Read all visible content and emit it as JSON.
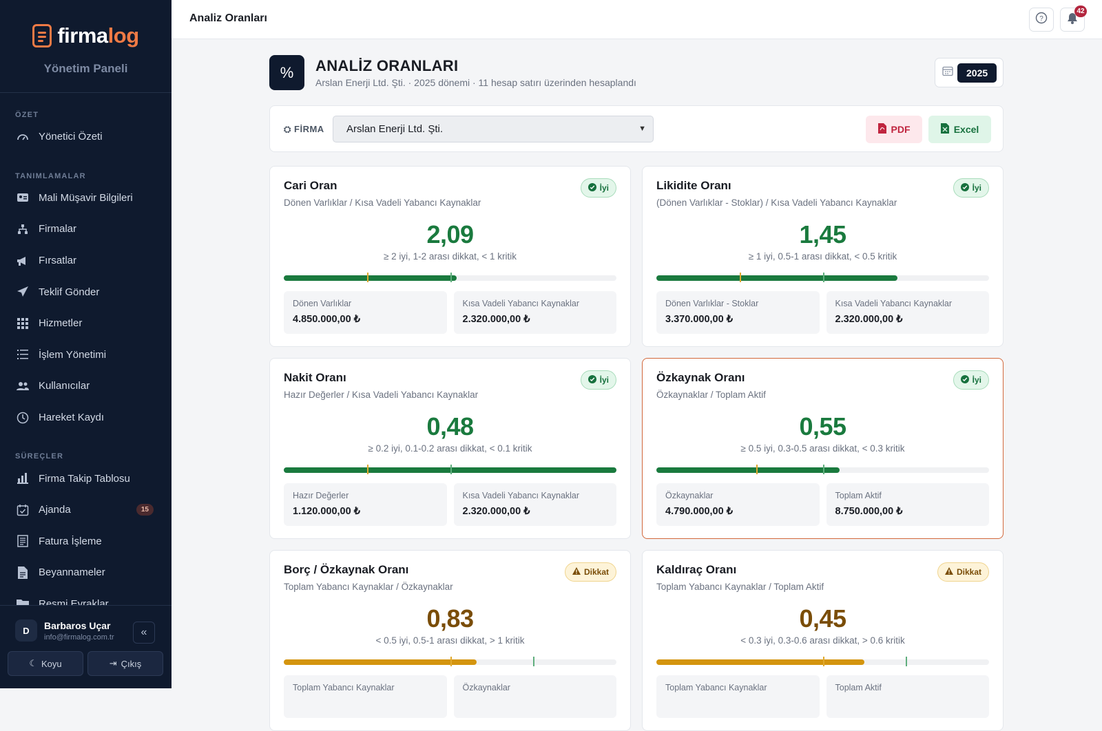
{
  "sidebar": {
    "logo_a": "firma",
    "logo_b": "log",
    "panel_label": "Yönetim Paneli",
    "sections": [
      {
        "title": "ÖZET",
        "items": [
          {
            "label": "Yönetici Özeti",
            "icon": "gauge-icon"
          }
        ]
      },
      {
        "title": "TANIMLAMALAR",
        "items": [
          {
            "label": "Mali Müşavir Bilgileri",
            "icon": "id-card-icon"
          },
          {
            "label": "Firmalar",
            "icon": "sitemap-icon"
          },
          {
            "label": "Fırsatlar",
            "icon": "megaphone-icon"
          },
          {
            "label": "Teklif Gönder",
            "icon": "paper-plane-icon"
          },
          {
            "label": "Hizmetler",
            "icon": "grid-icon"
          },
          {
            "label": "İşlem Yönetimi",
            "icon": "list-icon"
          },
          {
            "label": "Kullanıcılar",
            "icon": "users-icon"
          },
          {
            "label": "Hareket Kaydı",
            "icon": "clock-icon"
          }
        ]
      },
      {
        "title": "SÜREÇLER",
        "items": [
          {
            "label": "Firma Takip Tablosu",
            "icon": "bar-chart-icon"
          },
          {
            "label": "Ajanda",
            "icon": "calendar-check-icon",
            "badge": "15"
          },
          {
            "label": "Fatura İşleme",
            "icon": "invoice-icon"
          },
          {
            "label": "Beyannameler",
            "icon": "file-icon"
          },
          {
            "label": "Resmi Evraklar",
            "icon": "folder-icon"
          }
        ]
      }
    ],
    "user": {
      "initial": "D",
      "name": "Barbaros Uçar",
      "email": "info@firmalog.com.tr"
    },
    "theme_label": "Koyu",
    "logout_label": "Çıkış"
  },
  "topbar": {
    "title": "Analiz Oranları",
    "notification_count": "42"
  },
  "page": {
    "icon": "%",
    "title": "ANALİZ ORANLARI",
    "subtitle": "Arslan Enerji Ltd. Şti. · 2025 dönemi · 11 hesap satırı üzerinden hesaplandı",
    "year": "2025"
  },
  "filter": {
    "label": "FİRMA",
    "selected_company": "Arslan Enerji Ltd. Şti.",
    "pdf_label": "PDF",
    "excel_label": "Excel"
  },
  "colors": {
    "good": "#1a7a3e",
    "warn": "#d4950e",
    "highlight_border": "#d2683b",
    "sidebar_bg": "#0f1a2e"
  },
  "cards": [
    {
      "title": "Cari Oran",
      "formula": "Dönen Varlıklar / Kısa Vadeli Yabancı Kaynaklar",
      "status": "İyi",
      "status_type": "good",
      "value": "2,09",
      "rule": "≥ 2 iyi, 1-2 arası dikkat, < 1 kritik",
      "progress": 0.52,
      "marks": [
        0.25,
        0.5
      ],
      "metrics": [
        {
          "label": "Dönen Varlıklar",
          "value": "4.850.000,00 ₺"
        },
        {
          "label": "Kısa Vadeli Yabancı Kaynaklar",
          "value": "2.320.000,00 ₺"
        }
      ]
    },
    {
      "title": "Likidite Oranı",
      "formula": "(Dönen Varlıklar - Stoklar) / Kısa Vadeli Yabancı Kaynaklar",
      "status": "İyi",
      "status_type": "good",
      "value": "1,45",
      "rule": "≥ 1 iyi, 0.5-1 arası dikkat, < 0.5 kritik",
      "progress": 0.725,
      "marks": [
        0.25,
        0.5
      ],
      "metrics": [
        {
          "label": "Dönen Varlıklar - Stoklar",
          "value": "3.370.000,00 ₺"
        },
        {
          "label": "Kısa Vadeli Yabancı Kaynaklar",
          "value": "2.320.000,00 ₺"
        }
      ]
    },
    {
      "title": "Nakit Oranı",
      "formula": "Hazır Değerler / Kısa Vadeli Yabancı Kaynaklar",
      "status": "İyi",
      "status_type": "good",
      "value": "0,48",
      "rule": "≥ 0.2 iyi, 0.1-0.2 arası dikkat, < 0.1 kritik",
      "progress": 1.0,
      "marks": [
        0.25,
        0.5
      ],
      "metrics": [
        {
          "label": "Hazır Değerler",
          "value": "1.120.000,00 ₺"
        },
        {
          "label": "Kısa Vadeli Yabancı Kaynaklar",
          "value": "2.320.000,00 ₺"
        }
      ]
    },
    {
      "title": "Özkaynak Oranı",
      "formula": "Özkaynaklar / Toplam Aktif",
      "status": "İyi",
      "status_type": "good",
      "value": "0,55",
      "rule": "≥ 0.5 iyi, 0.3-0.5 arası dikkat, < 0.3 kritik",
      "progress": 0.55,
      "marks": [
        0.3,
        0.5
      ],
      "highlight": true,
      "metrics": [
        {
          "label": "Özkaynaklar",
          "value": "4.790.000,00 ₺"
        },
        {
          "label": "Toplam Aktif",
          "value": "8.750.000,00 ₺"
        }
      ]
    },
    {
      "title": "Borç / Özkaynak Oranı",
      "formula": "Toplam Yabancı Kaynaklar / Özkaynaklar",
      "status": "Dikkat",
      "status_type": "warn",
      "value": "0,83",
      "rule": "< 0.5 iyi, 0.5-1 arası dikkat, > 1 kritik",
      "progress": 0.58,
      "marks": [
        0.5,
        0.75
      ],
      "metrics": [
        {
          "label": "Toplam Yabancı Kaynaklar",
          "value": ""
        },
        {
          "label": "Özkaynaklar",
          "value": ""
        }
      ]
    },
    {
      "title": "Kaldıraç Oranı",
      "formula": "Toplam Yabancı Kaynaklar / Toplam Aktif",
      "status": "Dikkat",
      "status_type": "warn",
      "value": "0,45",
      "rule": "< 0.3 iyi, 0.3-0.6 arası dikkat, > 0.6 kritik",
      "progress": 0.625,
      "marks": [
        0.5,
        0.75
      ],
      "metrics": [
        {
          "label": "Toplam Yabancı Kaynaklar",
          "value": ""
        },
        {
          "label": "Toplam Aktif",
          "value": ""
        }
      ]
    }
  ]
}
